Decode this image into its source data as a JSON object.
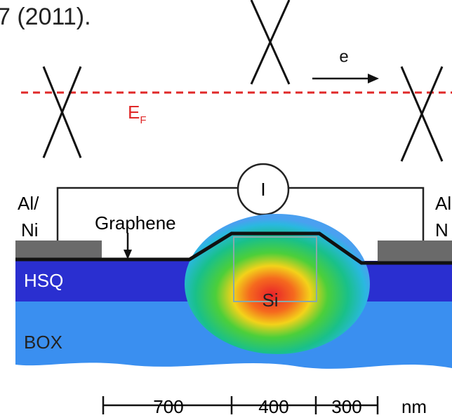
{
  "caption_fragment": "7 (2011).",
  "labels": {
    "electron": "e",
    "fermi_main": "E",
    "fermi_sub": "F",
    "current": "I",
    "left_contact_1": "Al/",
    "left_contact_2": "Ni",
    "right_contact_1": "Al",
    "right_contact_2": "N",
    "graphene": "Graphene",
    "silicon": "Si",
    "hsq": "HSQ",
    "box": "BOX"
  },
  "scale_bar": {
    "segments": [
      "700",
      "400",
      "300"
    ],
    "unit": "nm"
  }
}
